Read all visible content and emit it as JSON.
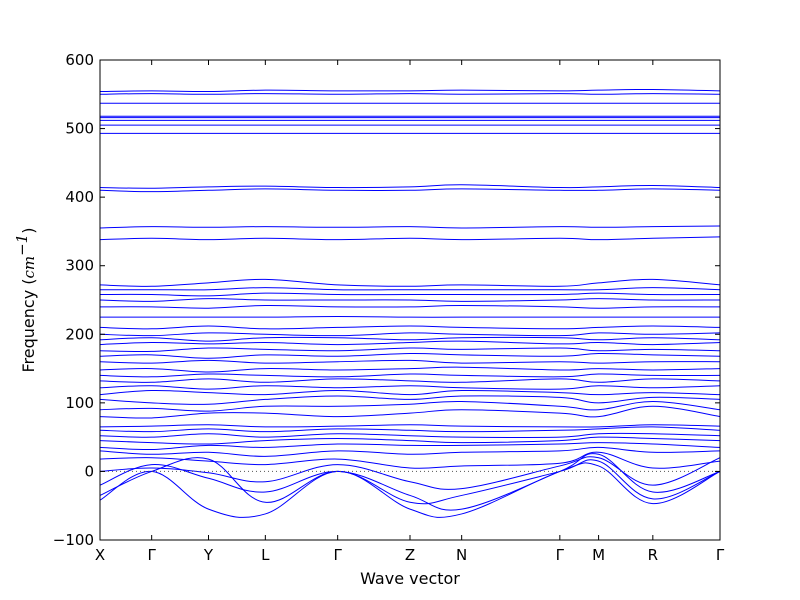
{
  "chart_data": {
    "type": "line",
    "title": "",
    "xlabel": "Wave vector",
    "ylabel": "Frequency",
    "ylabel_unit": "cm",
    "ylabel_unit_exp": "−1",
    "ylim": [
      -100,
      600
    ],
    "yticks": [
      -100,
      0,
      100,
      200,
      300,
      400,
      500,
      600
    ],
    "ytick_labels": [
      "−100",
      "0",
      "100",
      "200",
      "300",
      "400",
      "500",
      "600"
    ],
    "xlim": [
      0,
      12
    ],
    "xticks": [
      {
        "x": 0.0,
        "label": "X"
      },
      {
        "x": 1.0,
        "label": "Γ"
      },
      {
        "x": 2.1,
        "label": "Y"
      },
      {
        "x": 3.2,
        "label": "L"
      },
      {
        "x": 4.6,
        "label": "Γ"
      },
      {
        "x": 6.0,
        "label": "Z"
      },
      {
        "x": 7.0,
        "label": "N"
      },
      {
        "x": 8.9,
        "label": "Γ"
      },
      {
        "x": 9.65,
        "label": "M"
      },
      {
        "x": 10.7,
        "label": "R"
      },
      {
        "x": 12.0,
        "label": "Γ"
      }
    ],
    "zero_line": true,
    "line_color": "#0000ff",
    "grid": false,
    "x": [
      0.0,
      1.0,
      2.1,
      3.2,
      4.6,
      6.0,
      7.0,
      8.9,
      9.65,
      10.7,
      12.0
    ],
    "series": [
      {
        "values": [
          -35,
          0,
          18,
          -45,
          0,
          -45,
          -35,
          0,
          15,
          -40,
          0
        ]
      },
      {
        "values": [
          -42,
          0,
          -55,
          -62,
          0,
          -55,
          -62,
          0,
          8,
          -47,
          0
        ]
      },
      {
        "values": [
          -20,
          10,
          -10,
          -30,
          0,
          -35,
          -55,
          0,
          25,
          -30,
          0
        ]
      },
      {
        "values": [
          0,
          5,
          -2,
          -15,
          10,
          -15,
          -25,
          8,
          20,
          -20,
          20
        ]
      },
      {
        "values": [
          18,
          20,
          15,
          10,
          18,
          5,
          8,
          12,
          28,
          5,
          15
        ]
      },
      {
        "values": [
          30,
          25,
          28,
          22,
          30,
          25,
          28,
          30,
          35,
          28,
          30
        ]
      },
      {
        "values": [
          35,
          32,
          38,
          35,
          40,
          38,
          38,
          40,
          42,
          40,
          35
        ]
      },
      {
        "values": [
          45,
          42,
          40,
          45,
          48,
          45,
          42,
          45,
          50,
          48,
          45
        ]
      },
      {
        "values": [
          52,
          50,
          55,
          50,
          55,
          52,
          50,
          50,
          55,
          55,
          52
        ]
      },
      {
        "values": [
          60,
          58,
          62,
          58,
          62,
          60,
          58,
          60,
          62,
          65,
          60
        ]
      },
      {
        "values": [
          65,
          66,
          68,
          65,
          66,
          68,
          66,
          65,
          65,
          68,
          66
        ]
      },
      {
        "values": [
          80,
          78,
          85,
          85,
          80,
          85,
          90,
          85,
          80,
          95,
          80
        ]
      },
      {
        "values": [
          90,
          92,
          88,
          95,
          95,
          98,
          102,
          95,
          90,
          102,
          90
        ]
      },
      {
        "values": [
          105,
          100,
          98,
          105,
          110,
          105,
          110,
          108,
          100,
          108,
          105
        ]
      },
      {
        "values": [
          112,
          118,
          115,
          112,
          118,
          112,
          118,
          115,
          112,
          115,
          112
        ]
      },
      {
        "values": [
          122,
          125,
          120,
          125,
          122,
          125,
          122,
          120,
          125,
          122,
          125
        ]
      },
      {
        "values": [
          132,
          130,
          135,
          130,
          135,
          132,
          130,
          135,
          130,
          135,
          132
        ]
      },
      {
        "values": [
          140,
          138,
          142,
          140,
          138,
          142,
          140,
          138,
          142,
          140,
          140
        ]
      },
      {
        "values": [
          148,
          150,
          145,
          150,
          148,
          150,
          152,
          148,
          150,
          148,
          150
        ]
      },
      {
        "values": [
          160,
          158,
          162,
          158,
          160,
          162,
          158,
          160,
          158,
          160,
          160
        ]
      },
      {
        "values": [
          168,
          170,
          165,
          170,
          168,
          172,
          170,
          168,
          172,
          170,
          168
        ]
      },
      {
        "values": [
          176,
          175,
          180,
          178,
          176,
          180,
          178,
          180,
          176,
          178,
          176
        ]
      },
      {
        "values": [
          185,
          188,
          186,
          188,
          185,
          188,
          190,
          186,
          188,
          185,
          188
        ]
      },
      {
        "values": [
          192,
          195,
          190,
          195,
          195,
          192,
          195,
          195,
          192,
          195,
          192
        ]
      },
      {
        "values": [
          200,
          198,
          202,
          200,
          198,
          202,
          200,
          198,
          202,
          200,
          202
        ]
      },
      {
        "values": [
          210,
          208,
          212,
          208,
          210,
          212,
          210,
          208,
          210,
          212,
          210
        ]
      },
      {
        "values": [
          225,
          225,
          225,
          225,
          226,
          225,
          225,
          225,
          225,
          225,
          225
        ]
      },
      {
        "values": [
          240,
          240,
          238,
          242,
          240,
          240,
          242,
          240,
          238,
          240,
          240
        ]
      },
      {
        "values": [
          250,
          248,
          252,
          250,
          250,
          250,
          248,
          250,
          252,
          250,
          250
        ]
      },
      {
        "values": [
          258,
          258,
          256,
          260,
          258,
          258,
          258,
          258,
          260,
          258,
          258
        ]
      },
      {
        "values": [
          265,
          265,
          265,
          268,
          265,
          265,
          265,
          265,
          265,
          268,
          265
        ]
      },
      {
        "values": [
          272,
          270,
          275,
          280,
          272,
          270,
          272,
          270,
          275,
          280,
          272
        ]
      },
      {
        "values": [
          338,
          340,
          338,
          340,
          338,
          340,
          338,
          340,
          338,
          340,
          342
        ]
      },
      {
        "values": [
          355,
          357,
          356,
          357,
          356,
          357,
          355,
          357,
          356,
          357,
          358
        ]
      },
      {
        "values": [
          410,
          408,
          410,
          412,
          410,
          410,
          412,
          410,
          410,
          412,
          410
        ]
      },
      {
        "values": [
          414,
          413,
          415,
          416,
          414,
          415,
          418,
          414,
          415,
          417,
          414
        ]
      },
      {
        "values": [
          493,
          493,
          493,
          493,
          493,
          493,
          493,
          493,
          493,
          493,
          493
        ]
      },
      {
        "values": [
          505,
          505,
          505,
          505,
          505,
          505,
          505,
          505,
          505,
          505,
          505
        ]
      },
      {
        "values": [
          512,
          512,
          512,
          512,
          512,
          512,
          512,
          512,
          512,
          512,
          512
        ]
      },
      {
        "values": [
          516,
          516,
          516,
          516,
          516,
          516,
          516,
          516,
          516,
          516,
          516
        ]
      },
      {
        "values": [
          518,
          518,
          518,
          518,
          518,
          518,
          518,
          518,
          518,
          518,
          518
        ]
      },
      {
        "values": [
          537,
          537,
          537,
          537,
          537,
          537,
          537,
          537,
          537,
          537,
          537
        ]
      },
      {
        "values": [
          550,
          551,
          550,
          551,
          550,
          551,
          550,
          551,
          550,
          551,
          550
        ]
      },
      {
        "values": [
          554,
          555,
          554,
          556,
          555,
          555,
          556,
          555,
          556,
          557,
          555
        ]
      }
    ]
  }
}
